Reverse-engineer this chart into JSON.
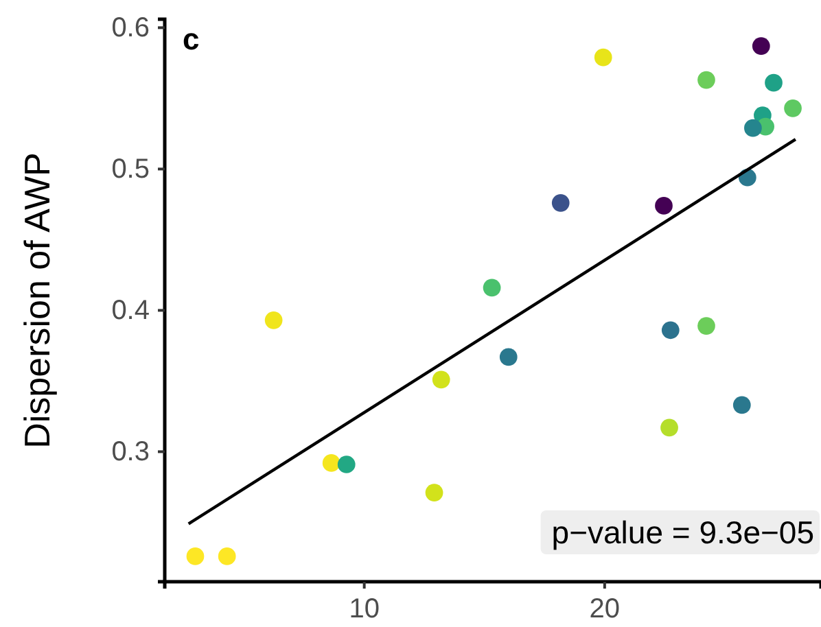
{
  "chart_data": {
    "type": "scatter",
    "title": "c",
    "ylabel": "Dispersion of AWP",
    "annotations": [
      "p−value = 9.3e−05"
    ],
    "xlim": [
      1.7,
      29.0
    ],
    "ylim": [
      0.208,
      0.606
    ],
    "xticks": [
      10,
      20
    ],
    "yticks": [
      0.3,
      0.4,
      0.5,
      0.6
    ],
    "grid": false,
    "series": [
      {
        "marker": "circle",
        "x": [
          2.97,
          4.29,
          6.23,
          8.63,
          9.26,
          13.2,
          12.91,
          15.31,
          16.0,
          18.17,
          19.94,
          22.46,
          22.74,
          24.23,
          22.69,
          24.23,
          26.51,
          27.03,
          26.57,
          26.69,
          26.17,
          25.94,
          27.83,
          25.71
        ],
        "values": [
          0.226,
          0.226,
          0.393,
          0.292,
          0.291,
          0.351,
          0.271,
          0.416,
          0.367,
          0.476,
          0.579,
          0.474,
          0.386,
          0.389,
          0.317,
          0.563,
          0.587,
          0.561,
          0.538,
          0.53,
          0.529,
          0.494,
          0.543,
          0.333
        ],
        "colors": [
          "#fde725",
          "#fde725",
          "#f0e51c",
          "#f5e61e",
          "#22a884",
          "#d2e21b",
          "#d2e21b",
          "#4ac16d",
          "#2a788e",
          "#3b528b",
          "#e8e419",
          "#440154",
          "#2c728e",
          "#6ccd5a",
          "#b5de2b",
          "#6ccd5a",
          "#440154",
          "#1fa187",
          "#1fa187",
          "#4ac16d",
          "#25858e",
          "#2a788e",
          "#5ec962",
          "#2a788e"
        ]
      },
      {
        "type": "line",
        "color": "#000000",
        "x": [
          2.69,
          27.94
        ],
        "values": [
          0.249,
          0.521
        ]
      }
    ]
  }
}
